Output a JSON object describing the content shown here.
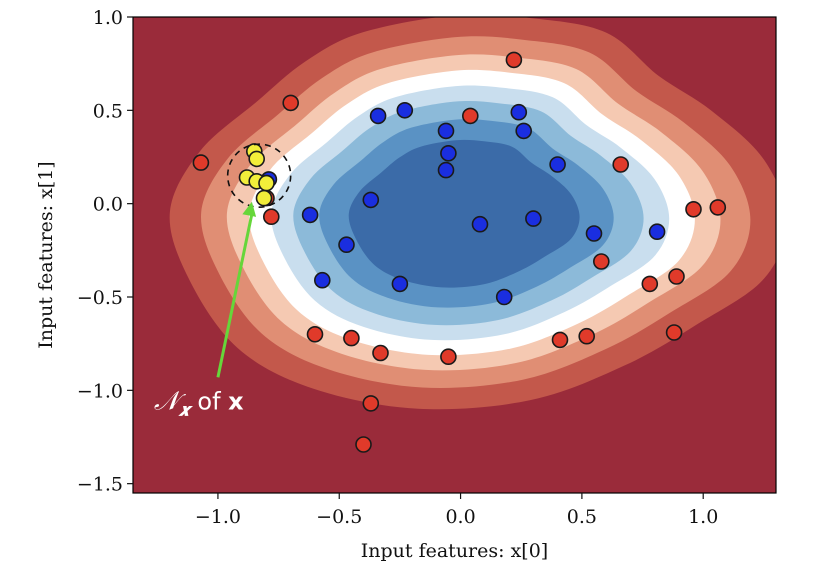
{
  "chart_data": {
    "type": "scatter",
    "title": "",
    "xlabel": "Input features: x[0]",
    "ylabel": "Input features: x[1]",
    "xlim": [
      -1.35,
      1.3
    ],
    "ylim": [
      -1.55,
      1.0
    ],
    "xticks": [
      -1.0,
      -0.5,
      0.0,
      0.5,
      1.0
    ],
    "xtick_labels": [
      "−1.0",
      "−0.5",
      "0.0",
      "0.5",
      "1.0"
    ],
    "yticks": [
      1.0,
      0.5,
      0.0,
      -0.5,
      -1.0,
      -1.5
    ],
    "ytick_labels": [
      "1.0",
      "0.5",
      "0.0",
      "−0.5",
      "−1.0",
      "−1.5"
    ],
    "grid": false,
    "legend": "none",
    "background": "filled decision-boundary contour (blue inside, white boundary, red outside)",
    "contour_colors": [
      "#9a2b3a",
      "#c3584b",
      "#e08e74",
      "#f5c9b2",
      "#ffffff",
      "#c9deee",
      "#8cbad9",
      "#5a92c4",
      "#3b6ba8"
    ],
    "series": [
      {
        "color": "#1a2ee0",
        "points": [
          [
            -0.79,
            0.13
          ],
          [
            -0.34,
            0.47
          ],
          [
            -0.23,
            0.5
          ],
          [
            -0.06,
            0.39
          ],
          [
            -0.05,
            0.27
          ],
          [
            -0.06,
            0.18
          ],
          [
            0.24,
            0.49
          ],
          [
            0.26,
            0.39
          ],
          [
            0.4,
            0.21
          ],
          [
            -0.62,
            -0.06
          ],
          [
            -0.37,
            0.02
          ],
          [
            -0.47,
            -0.22
          ],
          [
            0.08,
            -0.11
          ],
          [
            0.3,
            -0.08
          ],
          [
            0.55,
            -0.16
          ],
          [
            0.81,
            -0.15
          ],
          [
            -0.57,
            -0.41
          ],
          [
            -0.25,
            -0.43
          ],
          [
            0.18,
            -0.5
          ]
        ]
      },
      {
        "color": "#e03a2a",
        "points": [
          [
            -1.07,
            0.22
          ],
          [
            -0.7,
            0.54
          ],
          [
            0.22,
            0.77
          ],
          [
            0.04,
            0.47
          ],
          [
            -0.8,
            0.03
          ],
          [
            -0.78,
            -0.07
          ],
          [
            0.66,
            0.21
          ],
          [
            0.96,
            -0.03
          ],
          [
            1.06,
            -0.02
          ],
          [
            0.58,
            -0.31
          ],
          [
            0.89,
            -0.39
          ],
          [
            0.78,
            -0.43
          ],
          [
            -0.6,
            -0.7
          ],
          [
            -0.45,
            -0.72
          ],
          [
            -0.33,
            -0.8
          ],
          [
            -0.05,
            -0.82
          ],
          [
            0.41,
            -0.73
          ],
          [
            0.52,
            -0.71
          ],
          [
            0.88,
            -0.69
          ],
          [
            -0.37,
            -1.07
          ],
          [
            -0.4,
            -1.29
          ]
        ]
      },
      {
        "color": "#f2ee3a",
        "points": [
          [
            -0.85,
            0.28
          ],
          [
            -0.84,
            0.24
          ],
          [
            -0.88,
            0.14
          ],
          [
            -0.84,
            0.12
          ],
          [
            -0.8,
            0.11
          ],
          [
            -0.81,
            0.03
          ]
        ]
      }
    ],
    "annotations": [
      {
        "text_script": "𝒩",
        "text_sub": "𝒙",
        "text_rest": " of ",
        "text_bold": "x",
        "color": "#ffffff",
        "arrow_color": "#66d63a",
        "arrow_from": [
          -1.0,
          -0.93
        ],
        "arrow_to": [
          -0.86,
          0.01
        ]
      }
    ],
    "neighborhood_circle": {
      "center": [
        -0.83,
        0.15
      ],
      "radius": 0.13,
      "style": "dashed"
    }
  }
}
